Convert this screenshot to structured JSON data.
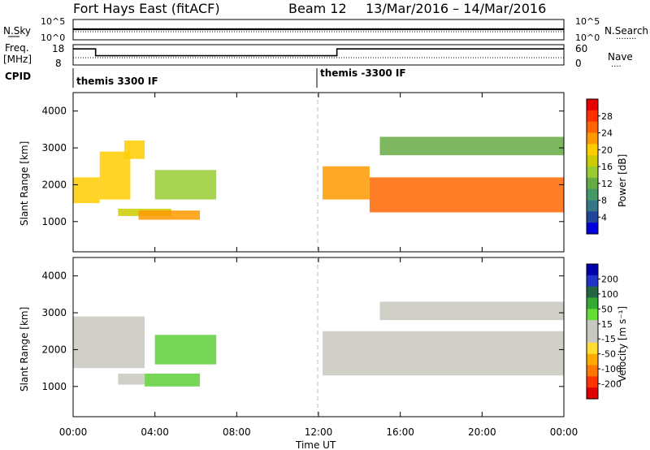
{
  "header": {
    "title": "Fort Hays East (fitACF)",
    "beam": "Beam 12",
    "dates": "13/Mar/2016 – 14/Mar/2016"
  },
  "nsky_panel": {
    "left_label": "N.Sky",
    "left_ticks": [
      "10^5",
      "10^0"
    ],
    "right_ticks": [
      "10^5",
      "10^0"
    ],
    "right_label": "N.Search",
    "right_legend": "........"
  },
  "freq_panel": {
    "left_label_1": "Freq.",
    "left_label_2": "[MHz]",
    "left_ticks": [
      "18",
      "8"
    ],
    "right_ticks": [
      "60",
      "0"
    ],
    "right_label": "Nave",
    "right_legend": "....",
    "series": [
      {
        "x": [
          0,
          1.1
        ],
        "y": 15.5
      },
      {
        "x": [
          1.1,
          12.9
        ],
        "y": 11.5
      },
      {
        "x": [
          12.9,
          24
        ],
        "y": 15.5
      }
    ]
  },
  "cpid": {
    "label": "CPID",
    "segments": [
      {
        "start": 0,
        "label": "themis 3300 IF"
      },
      {
        "start": 12,
        "label": "themis -3300 IF"
      }
    ]
  },
  "power_panel": {
    "ylabel": "Slant Range [km]",
    "yticks": [
      "4000",
      "3000",
      "2000",
      "1000"
    ],
    "cbar_label": "Power [dB]",
    "cbar_ticks": [
      "28",
      "24",
      "20",
      "16",
      "12",
      "8",
      "4"
    ],
    "cbar_colors": [
      "#e60000",
      "#ff3000",
      "#ff6600",
      "#ff9900",
      "#ffcc00",
      "#cccc00",
      "#99cc33",
      "#66aa44",
      "#449966",
      "#337788",
      "#224499",
      "#0000dd"
    ]
  },
  "velocity_panel": {
    "ylabel": "Slant Range [km]",
    "yticks": [
      "4000",
      "3000",
      "2000",
      "1000"
    ],
    "cbar_label": "Velocity [m s⁻¹]",
    "cbar_ticks": [
      "200",
      "100",
      "50",
      "15",
      "-15",
      "-50",
      "-100",
      "-200"
    ],
    "cbar_colors": [
      "#0000aa",
      "#2233cc",
      "#226644",
      "#33aa33",
      "#66dd33",
      "#c8c8c0",
      "#c8c8c0",
      "#ffdd33",
      "#ffaa00",
      "#ff7700",
      "#ff3300",
      "#dd0000"
    ]
  },
  "x_axis": {
    "label": "Time UT",
    "ticks": [
      "00:00",
      "04:00",
      "08:00",
      "12:00",
      "16:00",
      "20:00",
      "00:00"
    ]
  },
  "chart_data": {
    "type": "heatmap",
    "x_range_hours": [
      0,
      24
    ],
    "y_range_km": [
      180,
      4500
    ],
    "power_regions_dB": [
      {
        "t": [
          0,
          1.3
        ],
        "range": [
          1500,
          2200
        ],
        "value": 20
      },
      {
        "t": [
          1.3,
          2.8
        ],
        "range": [
          1600,
          2900
        ],
        "value": 20
      },
      {
        "t": [
          2.5,
          3.5
        ],
        "range": [
          2700,
          3200
        ],
        "value": 18
      },
      {
        "t": [
          2.2,
          4.8
        ],
        "range": [
          1150,
          1350
        ],
        "value": 16
      },
      {
        "t": [
          3.2,
          6.2
        ],
        "range": [
          1050,
          1300
        ],
        "value": 22
      },
      {
        "t": [
          4.0,
          7.0
        ],
        "range": [
          1600,
          2400
        ],
        "value": 14
      },
      {
        "t": [
          12.2,
          14.5
        ],
        "range": [
          1600,
          2500
        ],
        "value": 22
      },
      {
        "t": [
          14.5,
          24
        ],
        "range": [
          1250,
          2200
        ],
        "value": 24
      },
      {
        "t": [
          15,
          24
        ],
        "range": [
          2800,
          3300
        ],
        "value": 10
      }
    ],
    "velocity_regions_ms": [
      {
        "t": [
          0,
          3.5
        ],
        "range": [
          1500,
          2900
        ],
        "value": 0
      },
      {
        "t": [
          2.2,
          3.5
        ],
        "range": [
          1050,
          1350
        ],
        "value": 0
      },
      {
        "t": [
          3.5,
          6.2
        ],
        "range": [
          1000,
          1350
        ],
        "value": 40
      },
      {
        "t": [
          4.0,
          7.0
        ],
        "range": [
          1600,
          2400
        ],
        "value": 40
      },
      {
        "t": [
          12.2,
          24
        ],
        "range": [
          1300,
          2500
        ],
        "value": 0
      },
      {
        "t": [
          15,
          24
        ],
        "range": [
          2800,
          3300
        ],
        "value": 0
      }
    ]
  }
}
